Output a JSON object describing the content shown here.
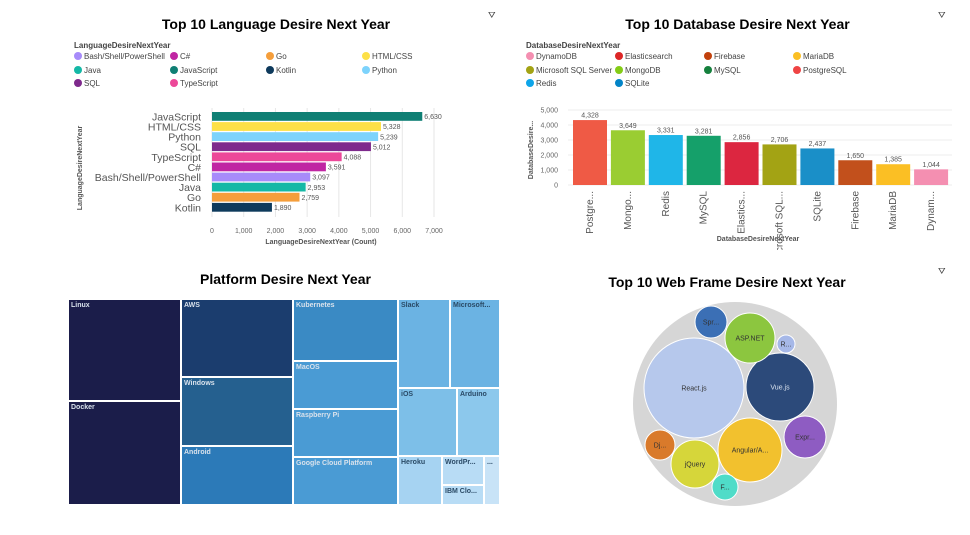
{
  "filter_icon": "filter-icon",
  "filter_glyph": "⛛",
  "language_chart": {
    "title": "Top 10 Language  Desire Next Year",
    "legend_title": "LanguageDesireNextYear",
    "legend": [
      {
        "name": "Bash/Shell/PowerShell",
        "color": "#a78bfa"
      },
      {
        "name": "C#",
        "color": "#c026a3"
      },
      {
        "name": "Go",
        "color": "#f59e3b"
      },
      {
        "name": "HTML/CSS",
        "color": "#fde047"
      },
      {
        "name": "Java",
        "color": "#14b8a6"
      },
      {
        "name": "JavaScript",
        "color": "#0f7f74"
      },
      {
        "name": "Kotlin",
        "color": "#0e3a5c"
      },
      {
        "name": "Python",
        "color": "#7dd3fc"
      },
      {
        "name": "SQL",
        "color": "#7e2a8c"
      },
      {
        "name": "TypeScript",
        "color": "#ec4899"
      }
    ]
  },
  "database_chart": {
    "title": "Top 10 Database Desire Next Year",
    "legend_title": "DatabaseDesireNextYear",
    "legend": [
      {
        "name": "DynamoDB",
        "color": "#f48fb1"
      },
      {
        "name": "Elasticsearch",
        "color": "#dc2626"
      },
      {
        "name": "Firebase",
        "color": "#c2410c"
      },
      {
        "name": "MariaDB",
        "color": "#fbbf24"
      },
      {
        "name": "Microsoft SQL Server",
        "color": "#a3a314"
      },
      {
        "name": "MongoDB",
        "color": "#84cc16"
      },
      {
        "name": "MySQL",
        "color": "#15803d"
      },
      {
        "name": "PostgreSQL",
        "color": "#ef4444"
      },
      {
        "name": "Redis",
        "color": "#0ea5e9"
      },
      {
        "name": "SQLite",
        "color": "#0284c7"
      }
    ]
  },
  "platform_chart": {
    "title": "Platform Desire Next Year"
  },
  "webframe_chart": {
    "title": "Top 10 Web Frame Desire Next Year"
  },
  "chart_data": [
    {
      "type": "bar",
      "orientation": "horizontal",
      "title": "Top 10 Language  Desire Next Year",
      "xlabel": "LanguageDesireNextYear (Count)",
      "ylabel": "LanguageDesireNextYear",
      "categories": [
        "JavaScript",
        "HTML/CSS",
        "Python",
        "SQL",
        "TypeScript",
        "C#",
        "Bash/Shell/PowerShell",
        "Java",
        "Go",
        "Kotlin"
      ],
      "values": [
        6630,
        5328,
        5239,
        5012,
        4088,
        3591,
        3097,
        2953,
        2759,
        1890
      ],
      "value_labels": [
        "6,630",
        "5,328",
        "5,239",
        "5,012",
        "4,088",
        "3,591",
        "3,097",
        "2,953",
        "2,759",
        "1,890"
      ],
      "colors": [
        "#0f7f74",
        "#fde047",
        "#7dd3fc",
        "#7e2a8c",
        "#ec4899",
        "#c026a3",
        "#a78bfa",
        "#14b8a6",
        "#f59e3b",
        "#0e3a5c"
      ],
      "xticks": [
        "0",
        "1,000",
        "2,000",
        "3,000",
        "4,000",
        "5,000",
        "6,000",
        "7,000"
      ],
      "xlim": [
        0,
        7000
      ],
      "grid": true
    },
    {
      "type": "bar",
      "orientation": "vertical",
      "title": "Top 10 Database Desire Next Year",
      "xlabel": "DatabaseDesireNextYear",
      "ylabel": "DatabaseDesire...",
      "categories": [
        "Postgre...",
        "Mongo...",
        "Redis",
        "MySQL",
        "Elastics...",
        "Microsoft SQL...",
        "SQLite",
        "Firebase",
        "MariaDB",
        "Dynam..."
      ],
      "values": [
        4328,
        3649,
        3331,
        3281,
        2856,
        2706,
        2437,
        1650,
        1385,
        1044
      ],
      "value_labels": [
        "4,328",
        "3,649",
        "3,331",
        "3,281",
        "2,856",
        "2,706",
        "2,437",
        "1,650",
        "1,385",
        "1,044"
      ],
      "colors": [
        "#ef5a45",
        "#9acd32",
        "#1fb6e8",
        "#15a06a",
        "#dc2640",
        "#a3a314",
        "#1a8fc8",
        "#c2501c",
        "#fbbf24",
        "#f48fb1"
      ],
      "yticks": [
        "0",
        "1,000",
        "2,000",
        "3,000",
        "4,000",
        "5,000"
      ],
      "ylim": [
        0,
        5000
      ],
      "grid": true
    },
    {
      "type": "treemap",
      "title": "Platform Desire Next Year",
      "cells": [
        {
          "label": "Linux",
          "color": "#1b1d4a"
        },
        {
          "label": "Docker",
          "color": "#1b1d4a"
        },
        {
          "label": "AWS",
          "color": "#1b3d6e"
        },
        {
          "label": "Windows",
          "color": "#25608f"
        },
        {
          "label": "Android",
          "color": "#2c7ab8"
        },
        {
          "label": "Kubernetes",
          "color": "#3a8ac4"
        },
        {
          "label": "MacOS",
          "color": "#4a9bd4"
        },
        {
          "label": "Raspberry Pi",
          "color": "#4a9bd4"
        },
        {
          "label": "Google Cloud Platform",
          "color": "#4a9bd4"
        },
        {
          "label": "Slack",
          "color": "#6bb3e3"
        },
        {
          "label": "Microsoft...",
          "color": "#6bb3e3"
        },
        {
          "label": "iOS",
          "color": "#7dbfe8"
        },
        {
          "label": "Arduino",
          "color": "#8cc8ec"
        },
        {
          "label": "Heroku",
          "color": "#a6d3f2"
        },
        {
          "label": "WordPr...",
          "color": "#b8dcf5"
        },
        {
          "label": "IBM Clo...",
          "color": "#b8dcf5"
        },
        {
          "label": "...",
          "color": "#c8e3f7"
        }
      ]
    },
    {
      "type": "packed-bubble",
      "title": "Top 10 Web Frame Desire Next Year",
      "bubbles": [
        {
          "label": "React.js",
          "color": "#b6c8ec",
          "size": 1.0
        },
        {
          "label": "Vue.js",
          "color": "#2c4a7a",
          "size": 0.46
        },
        {
          "label": "Angular/A...",
          "color": "#f2c12e",
          "size": 0.41
        },
        {
          "label": "ASP.NET",
          "color": "#8cc63f",
          "size": 0.2
        },
        {
          "label": "jQuery",
          "color": "#d6d63a",
          "size": 0.17
        },
        {
          "label": "Expr...",
          "color": "#8e5cc2",
          "size": 0.12
        },
        {
          "label": "Spr...",
          "color": "#3b6fb5",
          "size": 0.08
        },
        {
          "label": "Dj...",
          "color": "#d97a2b",
          "size": 0.07
        },
        {
          "label": "F...",
          "color": "#4fdcc8",
          "size": 0.05
        },
        {
          "label": "R...",
          "color": "#a6b8e8",
          "size": 0.03
        }
      ]
    }
  ]
}
